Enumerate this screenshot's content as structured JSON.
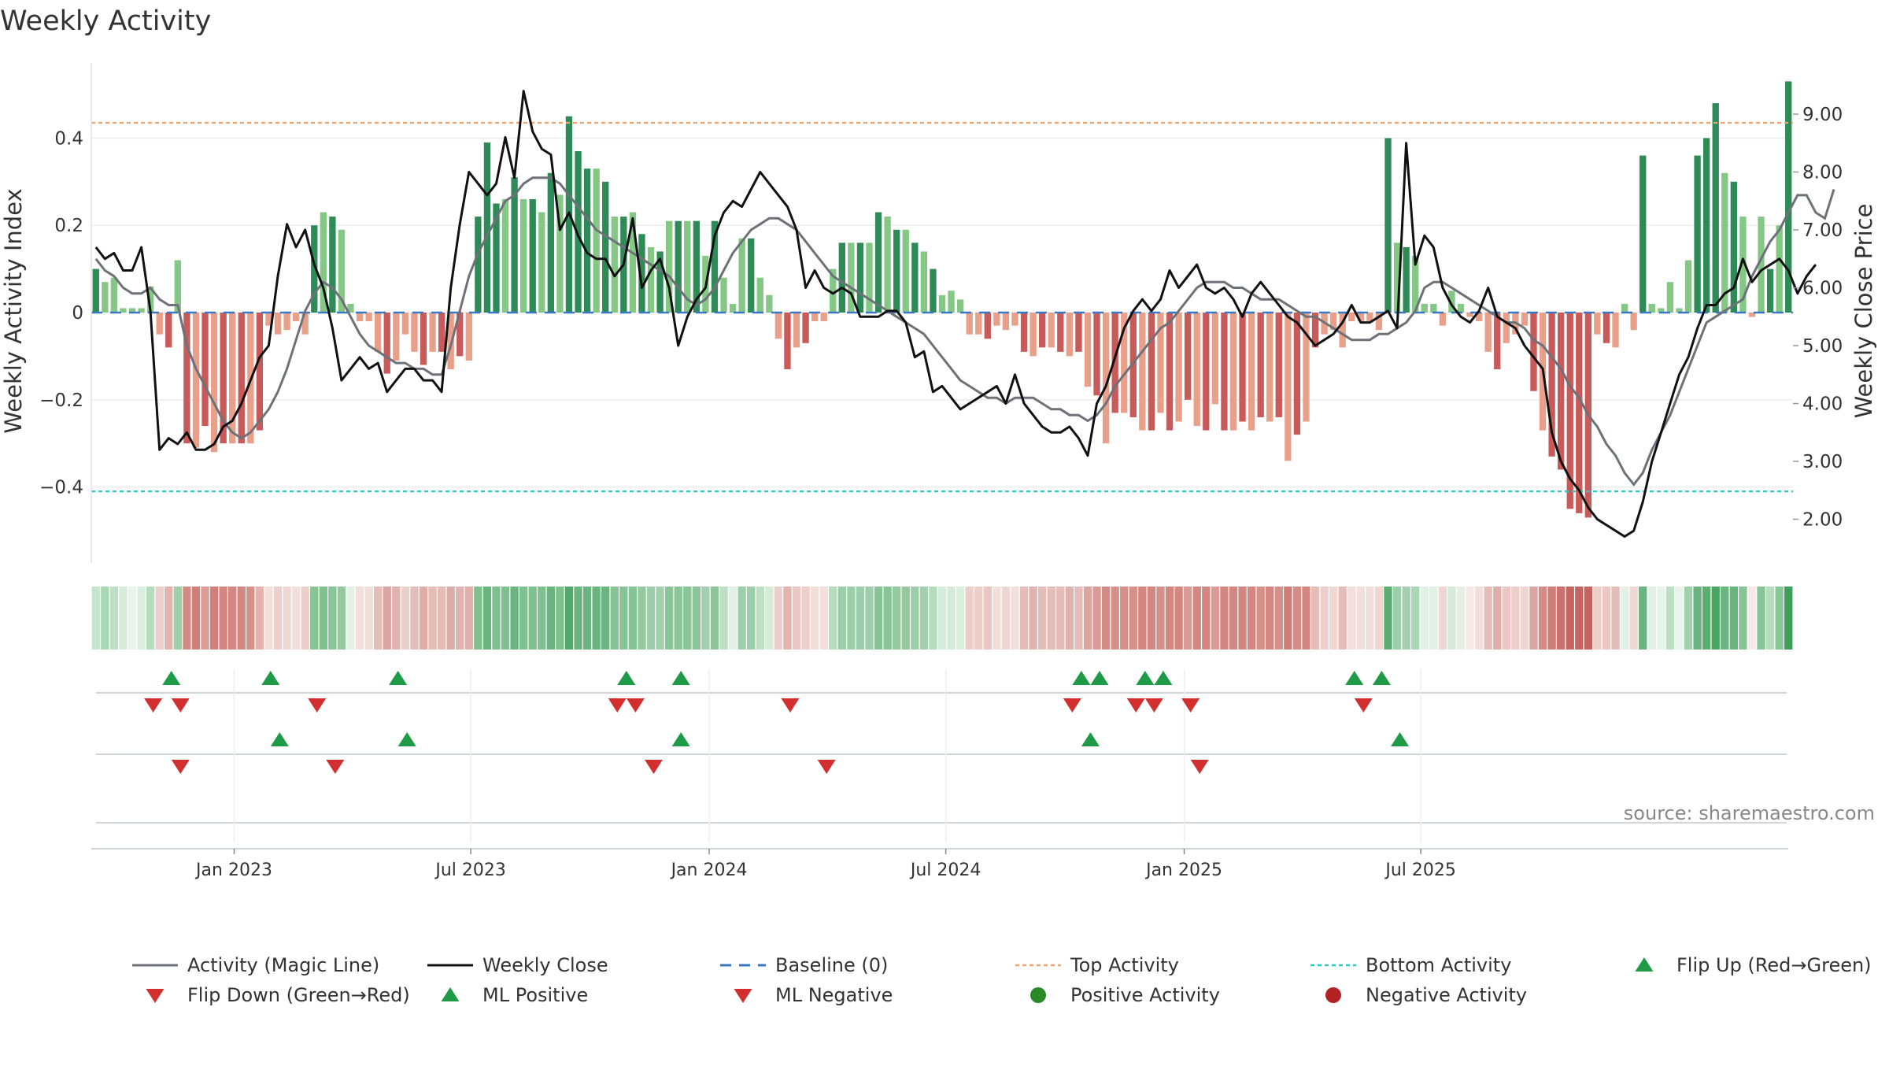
{
  "title": "Weekly Activity",
  "source": "source: sharemaestro.com",
  "colors": {
    "posDark": "#2e8b57",
    "posLight": "#85c785",
    "negDark": "#c85a5a",
    "negLight": "#e9a08b",
    "magic": "#6e7178",
    "close": "#111111",
    "baseline": "#3b78c2",
    "top": "#f0a36a",
    "bottom": "#27c9c9",
    "up": "#1f9a46",
    "down": "#d32f2f",
    "posDot": "#2a8a2a",
    "negDot": "#b22222"
  },
  "chart_data": {
    "type": "bar",
    "title": "Weekly Activity",
    "ylabel": "Weekly Activity Index",
    "y2label": "Weekly Close Price",
    "ylim": [
      -0.575,
      0.575
    ],
    "y2lim": [
      1.25,
      9.85
    ],
    "yticks": [
      0.4,
      0.2,
      0,
      -0.2,
      -0.4
    ],
    "ytick_labels": [
      "0.4",
      "0.2",
      "0",
      "−0.2",
      "−0.4"
    ],
    "y2ticks": [
      9,
      8,
      7,
      6,
      5,
      4,
      3,
      2
    ],
    "y2tick_labels": [
      "9.00",
      "8.00",
      "7.00",
      "6.00",
      "5.00",
      "4.00",
      "3.00",
      "2.00"
    ],
    "x_ticks": [
      "Jan 2023",
      "Jul 2023",
      "Jan 2024",
      "Jul 2024",
      "Jan 2025",
      "Jul 2025"
    ],
    "x_tick_weeks": [
      15.2,
      41.2,
      67.4,
      93.4,
      119.6,
      145.6
    ],
    "top_level": 0.435,
    "bottom_level": -0.41,
    "activity": [
      0.1,
      0.07,
      0.08,
      0.01,
      0.01,
      0.01,
      0.06,
      -0.05,
      -0.08,
      0.12,
      -0.3,
      -0.31,
      -0.26,
      -0.32,
      -0.3,
      -0.3,
      -0.3,
      -0.3,
      -0.27,
      -0.03,
      -0.05,
      -0.04,
      -0.02,
      -0.05,
      0.2,
      0.23,
      0.22,
      0.19,
      0.02,
      -0.02,
      -0.02,
      -0.09,
      -0.14,
      -0.11,
      -0.05,
      -0.09,
      -0.12,
      -0.09,
      -0.09,
      -0.13,
      -0.1,
      -0.11,
      0.22,
      0.39,
      0.25,
      0.26,
      0.31,
      0.26,
      0.26,
      0.23,
      0.32,
      0.27,
      0.45,
      0.37,
      0.33,
      0.33,
      0.3,
      0.22,
      0.22,
      0.23,
      0.18,
      0.15,
      0.14,
      0.21,
      0.21,
      0.21,
      0.21,
      0.13,
      0.21,
      0.08,
      0.02,
      0.17,
      0.17,
      0.08,
      0.04,
      -0.06,
      -0.13,
      -0.08,
      -0.07,
      -0.02,
      -0.02,
      0.1,
      0.16,
      0.16,
      0.16,
      0.16,
      0.23,
      0.22,
      0.19,
      0.19,
      0.16,
      0.14,
      0.1,
      0.04,
      0.05,
      0.03,
      -0.05,
      -0.05,
      -0.06,
      -0.03,
      -0.04,
      -0.03,
      -0.09,
      -0.1,
      -0.08,
      -0.08,
      -0.09,
      -0.1,
      -0.09,
      -0.17,
      -0.19,
      -0.3,
      -0.23,
      -0.23,
      -0.24,
      -0.27,
      -0.27,
      -0.23,
      -0.27,
      -0.25,
      -0.2,
      -0.26,
      -0.27,
      -0.21,
      -0.27,
      -0.27,
      -0.25,
      -0.27,
      -0.24,
      -0.25,
      -0.24,
      -0.34,
      -0.28,
      -0.25,
      -0.08,
      -0.05,
      -0.04,
      -0.08,
      -0.02,
      -0.02,
      -0.02,
      -0.04,
      0.4,
      0.16,
      0.15,
      0.13,
      0.02,
      0.02,
      -0.03,
      0.05,
      0.02,
      -0.01,
      -0.02,
      -0.09,
      -0.13,
      -0.07,
      -0.05,
      -0.03,
      -0.18,
      -0.27,
      -0.33,
      -0.36,
      -0.45,
      -0.46,
      -0.47,
      -0.05,
      -0.07,
      -0.08,
      0.02,
      -0.04,
      0.36,
      0.02,
      0.01,
      0.07,
      0.01,
      0.12,
      0.36,
      0.4,
      0.48,
      0.32,
      0.3,
      0.22,
      -0.01,
      0.22,
      0.1,
      0.2,
      0.53
    ],
    "weekly_close": [
      6.7,
      6.5,
      6.6,
      6.3,
      6.3,
      6.7,
      5.6,
      3.2,
      3.4,
      3.3,
      3.5,
      3.2,
      3.2,
      3.3,
      3.6,
      3.7,
      4.0,
      4.4,
      4.8,
      5.0,
      6.2,
      7.1,
      6.7,
      7.0,
      6.4,
      6.0,
      5.3,
      4.4,
      4.6,
      4.8,
      4.6,
      4.7,
      4.2,
      4.4,
      4.6,
      4.6,
      4.4,
      4.4,
      4.2,
      6.0,
      7.1,
      8.0,
      7.8,
      7.6,
      7.8,
      8.6,
      7.9,
      9.4,
      8.7,
      8.4,
      8.3,
      7.0,
      7.3,
      6.9,
      6.6,
      6.5,
      6.5,
      6.2,
      6.4,
      7.2,
      6.0,
      6.3,
      6.5,
      6.0,
      5.0,
      5.5,
      5.8,
      6.0,
      6.9,
      7.3,
      7.5,
      7.4,
      7.7,
      8.0,
      7.8,
      7.6,
      7.4,
      7.0,
      6.0,
      6.3,
      6.0,
      5.9,
      6.0,
      5.9,
      5.5,
      5.5,
      5.5,
      5.6,
      5.6,
      5.4,
      4.8,
      4.9,
      4.2,
      4.3,
      4.1,
      3.9,
      4.0,
      4.1,
      4.2,
      4.3,
      4.0,
      4.5,
      4.0,
      3.8,
      3.6,
      3.5,
      3.5,
      3.6,
      3.4,
      3.1,
      4.0,
      4.3,
      4.8,
      5.3,
      5.6,
      5.8,
      5.6,
      5.8,
      6.3,
      6.0,
      6.2,
      6.4,
      6.0,
      5.9,
      6.0,
      5.8,
      5.5,
      5.9,
      6.1,
      5.9,
      5.7,
      5.5,
      5.4,
      5.2,
      5.0,
      5.1,
      5.2,
      5.4,
      5.7,
      5.4,
      5.4,
      5.5,
      5.6,
      5.3,
      8.5,
      6.4,
      6.9,
      6.7,
      6.0,
      5.7,
      5.5,
      5.4,
      5.6,
      6.0,
      5.5,
      5.4,
      5.3,
      5.0,
      4.8,
      4.6,
      3.5,
      3.0,
      2.7,
      2.5,
      2.2,
      2.0,
      1.9,
      1.8,
      1.7,
      1.8,
      2.3,
      3.0,
      3.5,
      4.0,
      4.5,
      4.8,
      5.3,
      5.7,
      5.7,
      5.9,
      6.0,
      6.5,
      6.1,
      6.3,
      6.4,
      6.5,
      6.3,
      5.9,
      6.2,
      6.4
    ],
    "magic_line": [
      6.5,
      6.3,
      6.2,
      6.0,
      5.9,
      5.9,
      6.0,
      5.8,
      5.7,
      5.7,
      5.0,
      4.6,
      4.3,
      4.0,
      3.7,
      3.5,
      3.4,
      3.5,
      3.7,
      3.9,
      4.2,
      4.6,
      5.1,
      5.6,
      5.9,
      6.1,
      6.0,
      5.8,
      5.5,
      5.2,
      5.0,
      4.9,
      4.8,
      4.7,
      4.7,
      4.6,
      4.6,
      4.5,
      4.5,
      5.0,
      5.6,
      6.2,
      6.6,
      6.9,
      7.2,
      7.5,
      7.6,
      7.8,
      7.9,
      7.9,
      7.9,
      7.8,
      7.6,
      7.4,
      7.2,
      7.0,
      6.9,
      6.8,
      6.7,
      6.6,
      6.5,
      6.4,
      6.3,
      6.2,
      6.0,
      5.8,
      5.7,
      5.8,
      6.0,
      6.3,
      6.6,
      6.8,
      7.0,
      7.1,
      7.2,
      7.2,
      7.1,
      7.0,
      6.8,
      6.6,
      6.4,
      6.2,
      6.1,
      6.0,
      5.9,
      5.8,
      5.7,
      5.6,
      5.5,
      5.4,
      5.3,
      5.2,
      5.0,
      4.8,
      4.6,
      4.4,
      4.3,
      4.2,
      4.1,
      4.1,
      4.0,
      4.1,
      4.1,
      4.1,
      4.0,
      3.9,
      3.9,
      3.8,
      3.8,
      3.7,
      3.8,
      4.0,
      4.3,
      4.5,
      4.7,
      4.9,
      5.1,
      5.3,
      5.4,
      5.6,
      5.8,
      6.0,
      6.1,
      6.1,
      6.1,
      6.0,
      6.0,
      5.9,
      5.8,
      5.8,
      5.8,
      5.7,
      5.6,
      5.5,
      5.5,
      5.4,
      5.3,
      5.2,
      5.1,
      5.1,
      5.1,
      5.2,
      5.2,
      5.3,
      5.4,
      5.6,
      6.0,
      6.1,
      6.1,
      6.0,
      5.9,
      5.8,
      5.7,
      5.6,
      5.5,
      5.4,
      5.4,
      5.3,
      5.1,
      5.0,
      4.8,
      4.6,
      4.3,
      4.1,
      3.8,
      3.6,
      3.3,
      3.1,
      2.8,
      2.6,
      2.8,
      3.2,
      3.5,
      3.8,
      4.2,
      4.6,
      5.0,
      5.4,
      5.5,
      5.6,
      5.7,
      5.8,
      6.2,
      6.5,
      6.8,
      7.0,
      7.3,
      7.6,
      7.6,
      7.3,
      7.2,
      7.7
    ],
    "ribbon_fill": [
      "#c6e5cc",
      "#a9d7b3",
      "#bde0c4",
      "#d6ecda",
      "#e8f3ea",
      "#dbefdf",
      "#b5dcbd",
      "#eccfcb",
      "#e3b3ae",
      "#9fd0aa",
      "#d38b85",
      "#cf7f7a",
      "#db9c97",
      "#d17f7a",
      "#d48681",
      "#d48681",
      "#d48681",
      "#d5908a",
      "#e3b3ae",
      "#f2dfdc",
      "#eccfcb",
      "#efd6d3",
      "#f2dfdc",
      "#eccfcb",
      "#86c395",
      "#7fc08f",
      "#8ac598",
      "#94c9a0",
      "#e2f0e5",
      "#f2dfdc",
      "#f2dfdc",
      "#e4bcb8",
      "#dba6a1",
      "#e1b3ae",
      "#eccfcb",
      "#e4bcb8",
      "#dfaea9",
      "#e4bcb8",
      "#e4bcb8",
      "#ddaca7",
      "#e1b3ae",
      "#dfb0ab",
      "#7fc08f",
      "#6ab47f",
      "#7fc08f",
      "#7fc08f",
      "#6ab47f",
      "#7fc08f",
      "#7fc08f",
      "#7fc08f",
      "#6ab47f",
      "#7fc08f",
      "#51a86a",
      "#6ab47f",
      "#6ab47f",
      "#6ab47f",
      "#6ab47f",
      "#86c395",
      "#86c395",
      "#86c395",
      "#94c9a0",
      "#9dceaa",
      "#a2d0ae",
      "#8ac598",
      "#8ac598",
      "#8ac598",
      "#8ac598",
      "#a2d0ae",
      "#8ac598",
      "#bde0c4",
      "#e2f0e5",
      "#9dceaa",
      "#9dceaa",
      "#bde0c4",
      "#d6ecda",
      "#eccfcb",
      "#e3b3ae",
      "#ecc6c2",
      "#eccfcb",
      "#f2dfdc",
      "#f2dfdc",
      "#b5dcbd",
      "#9dceaa",
      "#9dceaa",
      "#9dceaa",
      "#9dceaa",
      "#86c395",
      "#8ac598",
      "#94c9a0",
      "#94c9a0",
      "#9dceaa",
      "#a2d0ae",
      "#b5dcbd",
      "#d6ecda",
      "#d3ead8",
      "#dbefdf",
      "#eccfcb",
      "#eccfcb",
      "#ecc6c2",
      "#f2dfdc",
      "#efd6d3",
      "#f2dfdc",
      "#e4bcb8",
      "#e1b3ae",
      "#e4bcb8",
      "#e4bcb8",
      "#e4bcb8",
      "#e1b3ae",
      "#e4bcb8",
      "#dba6a1",
      "#d79c97",
      "#d38b85",
      "#d5908a",
      "#d5908a",
      "#d5908a",
      "#d48681",
      "#d48681",
      "#d5908a",
      "#d48681",
      "#d48681",
      "#d79c97",
      "#d48681",
      "#d48681",
      "#d79c97",
      "#d48681",
      "#d48681",
      "#d48681",
      "#d48681",
      "#d5908a",
      "#d48681",
      "#d5908a",
      "#cd7c77",
      "#d38b85",
      "#d48681",
      "#e4bcb8",
      "#eccfcb",
      "#efd6d3",
      "#e4bcb8",
      "#f2dfdc",
      "#f2dfdc",
      "#f2dfdc",
      "#efd6d3",
      "#5cad72",
      "#9dceaa",
      "#a2d0ae",
      "#a9d7b3",
      "#e2f0e5",
      "#e2f0e5",
      "#efd6d3",
      "#d3ead8",
      "#e2f0e5",
      "#f6e9e7",
      "#f2dfdc",
      "#e4bcb8",
      "#dfaea9",
      "#ecc6c2",
      "#eccfcb",
      "#efd6d3",
      "#dba6a1",
      "#d38b85",
      "#cd7c77",
      "#c9716c",
      "#c4665f",
      "#c4665f",
      "#c4665f",
      "#eccfcb",
      "#ecc6c2",
      "#e4bcb8",
      "#e2f0e5",
      "#efd6d3",
      "#6ab47f",
      "#e2f0e5",
      "#e8f3ea",
      "#bde0c4",
      "#e8f3ea",
      "#a2d0ae",
      "#6ab47f",
      "#5cad72",
      "#4aa565",
      "#6ab47f",
      "#6ab47f",
      "#86c395",
      "#f6e9e7",
      "#86c395",
      "#b5dcbd",
      "#8ac598",
      "#3aa05a"
    ],
    "flip_up_weeks": [
      8.3,
      19.2,
      33.2,
      58.3,
      64.3,
      108.3,
      110.3,
      115.3,
      117.3,
      138.3,
      141.3
    ],
    "flip_down_weeks": [
      6.3,
      9.3,
      24.3,
      57.3,
      59.3,
      76.3,
      107.3,
      114.3,
      116.3,
      120.3,
      139.3
    ],
    "ml_positive_weeks": [
      20.2,
      34.2,
      64.3,
      109.3,
      143.3
    ],
    "ml_negative_weeks": [
      9.3,
      26.3,
      61.3,
      80.3,
      121.3
    ],
    "legend": [
      {
        "label": "Activity (Magic Line)",
        "kind": "line-magic"
      },
      {
        "label": "Weekly Close",
        "kind": "line-close"
      },
      {
        "label": "Baseline (0)",
        "kind": "dash-baseline"
      },
      {
        "label": "Top Activity",
        "kind": "dot-top"
      },
      {
        "label": "Bottom Activity",
        "kind": "dot-bottom"
      },
      {
        "label": "Flip Up (Red→Green)",
        "kind": "tri-up"
      },
      {
        "label": "Flip Down (Green→Red)",
        "kind": "tri-down"
      },
      {
        "label": "ML Positive",
        "kind": "tri-up"
      },
      {
        "label": "ML Negative",
        "kind": "tri-down"
      },
      {
        "label": "Positive Activity",
        "kind": "circle-pos"
      },
      {
        "label": "Negative Activity",
        "kind": "circle-neg"
      }
    ]
  }
}
